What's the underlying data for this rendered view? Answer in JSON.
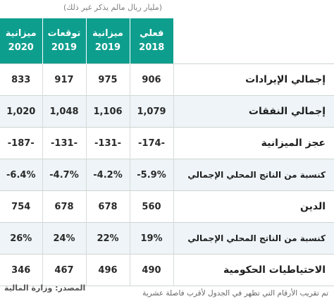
{
  "unit_note": "(مليار ريال مالم يذكر غير ذلك)",
  "columns": [
    {
      "line1": "ميزانية",
      "line2": "2020"
    },
    {
      "line1": "توقعات",
      "line2": "2019"
    },
    {
      "line1": "ميزانية",
      "line2": "2019"
    },
    {
      "line1": "فعلي",
      "line2": "2018"
    }
  ],
  "rows": [
    {
      "label": "إجمالي الإيرادات",
      "values": [
        "833",
        "917",
        "975",
        "906"
      ]
    },
    {
      "label": "إجمالي النفقات",
      "values": [
        "1,020",
        "1,048",
        "1,106",
        "1,079"
      ]
    },
    {
      "label": "عجز الميزانية",
      "values": [
        "-187-",
        "-131-",
        "-131-",
        "-174-"
      ]
    },
    {
      "label": "كنسبة من الناتج المحلي الإجمالي",
      "values": [
        "-6.4%",
        "-4.7%",
        "-4.2%",
        "-5.9%"
      ]
    },
    {
      "label": "الدين",
      "values": [
        "754",
        "678",
        "678",
        "560"
      ]
    },
    {
      "label": "كنسبة من الناتج المحلي الإجمالي",
      "values": [
        "26%",
        "24%",
        "22%",
        "19%"
      ]
    },
    {
      "label": "الاحتياطيات الحكومية",
      "values": [
        "346",
        "467",
        "496",
        "490"
      ]
    }
  ],
  "source": "المصدر: وزارة المالية",
  "footnote": "تم تقريب الأرقام التي تظهر في الجدول لأقرب فاصلة عشرية",
  "colors": {
    "header_bg": "#0e9e8e",
    "alt_row_bg": "#eef4f7"
  }
}
